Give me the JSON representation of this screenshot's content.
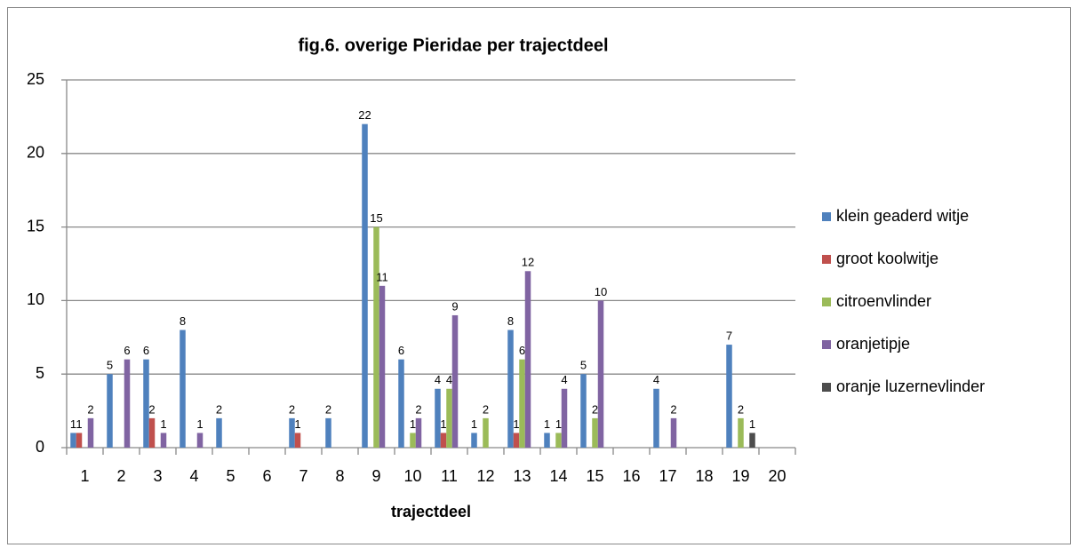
{
  "chart_data": {
    "type": "bar",
    "title": "fig.6. overige Pieridae per trajectdeel",
    "x_label": "trajectdeel",
    "categories": [
      "1",
      "2",
      "3",
      "4",
      "5",
      "6",
      "7",
      "8",
      "9",
      "10",
      "11",
      "12",
      "13",
      "14",
      "15",
      "16",
      "17",
      "18",
      "19",
      "20"
    ],
    "series": [
      {
        "name": "klein geaderd witje",
        "color": "#4f81bd",
        "values": [
          1,
          5,
          6,
          8,
          2,
          0,
          2,
          2,
          22,
          6,
          4,
          1,
          8,
          1,
          5,
          0,
          4,
          0,
          7,
          0
        ]
      },
      {
        "name": "groot koolwitje",
        "color": "#c0504d",
        "values": [
          1,
          0,
          2,
          0,
          0,
          0,
          1,
          0,
          0,
          0,
          1,
          0,
          1,
          0,
          0,
          0,
          0,
          0,
          0,
          0
        ]
      },
      {
        "name": "citroenvlinder",
        "color": "#9bbb59",
        "values": [
          0,
          0,
          0,
          0,
          0,
          0,
          0,
          0,
          15,
          1,
          4,
          2,
          6,
          1,
          2,
          0,
          0,
          0,
          2,
          0
        ]
      },
      {
        "name": "oranjetipje",
        "color": "#8064a2",
        "values": [
          2,
          6,
          1,
          1,
          0,
          0,
          0,
          0,
          11,
          2,
          9,
          0,
          12,
          4,
          10,
          0,
          2,
          0,
          0,
          0
        ]
      },
      {
        "name": "oranje luzernevlinder",
        "color": "#4d4d4d",
        "values": [
          0,
          0,
          0,
          0,
          0,
          0,
          0,
          0,
          0,
          0,
          0,
          0,
          0,
          0,
          0,
          0,
          0,
          0,
          1,
          0
        ]
      }
    ],
    "ylim": [
      0,
      25
    ],
    "yticks": [
      0,
      5,
      10,
      15,
      20,
      25
    ],
    "grid": true,
    "legend": "right"
  }
}
